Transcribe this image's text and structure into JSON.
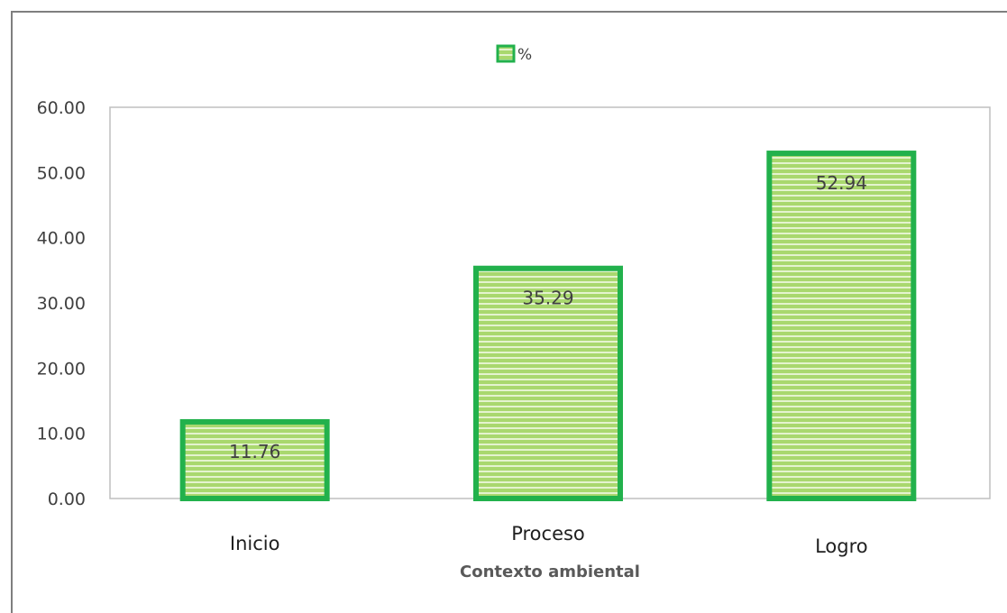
{
  "chart_data": {
    "type": "bar",
    "categories": [
      "Inicio",
      "Proceso",
      "Logro"
    ],
    "series": [
      {
        "name": "%",
        "values": [
          11.76,
          35.29,
          52.94
        ]
      }
    ],
    "data_labels": [
      "11.76",
      "35.29",
      "52.94"
    ],
    "xlabel": "Contexto ambiental",
    "ylabel": "",
    "ylim": [
      0,
      60
    ],
    "yticks": [
      0,
      10,
      20,
      30,
      40,
      50,
      60
    ],
    "ytick_labels": [
      "0.00",
      "10.00",
      "20.00",
      "30.00",
      "40.00",
      "50.00",
      "60.00"
    ],
    "grid": false,
    "legend_position": "top",
    "colors": {
      "bar_fill": "#a9d86e",
      "bar_stripe": "#e4f3cf",
      "bar_border": "#22b14c",
      "plot_border": "#bfbfbf"
    }
  }
}
